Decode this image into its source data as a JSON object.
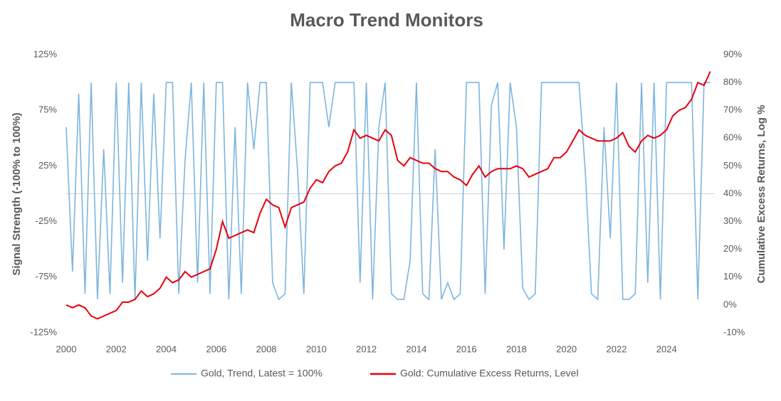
{
  "chart_data": {
    "type": "line",
    "title": "Macro Trend Monitors",
    "y_label": "Signal Strength (-100% to 100%)",
    "y2_label": "Cumulative Excess Returns, Log %",
    "x": [
      2000,
      2000.25,
      2000.5,
      2000.75,
      2001,
      2001.25,
      2001.5,
      2001.75,
      2002,
      2002.25,
      2002.5,
      2002.75,
      2003,
      2003.25,
      2003.5,
      2003.75,
      2004,
      2004.25,
      2004.5,
      2004.75,
      2005,
      2005.25,
      2005.5,
      2005.75,
      2006,
      2006.25,
      2006.5,
      2006.75,
      2007,
      2007.25,
      2007.5,
      2007.75,
      2008,
      2008.25,
      2008.5,
      2008.75,
      2009,
      2009.25,
      2009.5,
      2009.75,
      2010,
      2010.25,
      2010.5,
      2010.75,
      2011,
      2011.25,
      2011.5,
      2011.75,
      2012,
      2012.25,
      2012.5,
      2012.75,
      2013,
      2013.25,
      2013.5,
      2013.75,
      2014,
      2014.25,
      2014.5,
      2014.75,
      2015,
      2015.25,
      2015.5,
      2015.75,
      2016,
      2016.25,
      2016.5,
      2016.75,
      2017,
      2017.25,
      2017.5,
      2017.75,
      2018,
      2018.25,
      2018.5,
      2018.75,
      2019,
      2019.25,
      2019.5,
      2019.75,
      2020,
      2020.25,
      2020.5,
      2020.75,
      2021,
      2021.25,
      2021.5,
      2021.75,
      2022,
      2022.25,
      2022.5,
      2022.75,
      2023,
      2023.25,
      2023.5,
      2023.75,
      2024,
      2024.25,
      2024.5,
      2024.75,
      2025,
      2025.25,
      2025.5,
      2025.75
    ],
    "xlim": [
      2000,
      2025.9
    ],
    "xticks": [
      2000,
      2002,
      2004,
      2006,
      2008,
      2010,
      2012,
      2014,
      2016,
      2018,
      2020,
      2022,
      2024
    ],
    "ylim": [
      -125,
      125
    ],
    "yticks": [
      {
        "value": -125,
        "label": "-125%"
      },
      {
        "value": -75,
        "label": "-75%"
      },
      {
        "value": -25,
        "label": "-25%"
      },
      {
        "value": 25,
        "label": "25%"
      },
      {
        "value": 75,
        "label": "75%"
      },
      {
        "value": 125,
        "label": "125%"
      }
    ],
    "y2lim": [
      -10,
      90
    ],
    "y2ticks": [
      {
        "value": -10,
        "label": "-10%"
      },
      {
        "value": 0,
        "label": "0%"
      },
      {
        "value": 10,
        "label": "10%"
      },
      {
        "value": 20,
        "label": "20%"
      },
      {
        "value": 30,
        "label": "30%"
      },
      {
        "value": 40,
        "label": "40%"
      },
      {
        "value": 50,
        "label": "50%"
      },
      {
        "value": 60,
        "label": "60%"
      },
      {
        "value": 70,
        "label": "70%"
      },
      {
        "value": 80,
        "label": "80%"
      },
      {
        "value": 90,
        "label": "90%"
      }
    ],
    "legend": "bottom",
    "series": [
      {
        "name": "Gold, Trend, Latest = 100%",
        "color": "#7db5df",
        "axis": "y",
        "values": [
          60,
          -70,
          90,
          -90,
          100,
          -95,
          40,
          -90,
          100,
          -80,
          100,
          -95,
          100,
          -60,
          90,
          -40,
          100,
          100,
          -90,
          30,
          100,
          -80,
          100,
          -90,
          100,
          100,
          -95,
          60,
          -90,
          100,
          40,
          100,
          100,
          -80,
          -95,
          -90,
          100,
          20,
          -90,
          100,
          100,
          100,
          60,
          100,
          100,
          100,
          100,
          -80,
          100,
          -95,
          60,
          100,
          -90,
          -95,
          -95,
          -60,
          100,
          -90,
          -95,
          40,
          -95,
          -80,
          -95,
          -90,
          100,
          100,
          100,
          -90,
          80,
          100,
          -50,
          100,
          60,
          -85,
          -95,
          -90,
          100,
          100,
          100,
          100,
          100,
          100,
          100,
          20,
          -90,
          -95,
          60,
          -40,
          100,
          -95,
          -95,
          -90,
          100,
          -80,
          100,
          -95,
          100,
          100,
          100,
          100,
          100,
          -95,
          100,
          100
        ]
      },
      {
        "name": "Gold: Cumulative Excess Returns, Level",
        "color": "#e8000b",
        "axis": "y2",
        "values": [
          0,
          -1,
          0,
          -1,
          -4,
          -5,
          -4,
          -3,
          -2,
          1,
          1,
          2,
          5,
          3,
          4,
          6,
          10,
          8,
          9,
          12,
          10,
          11,
          12,
          13,
          20,
          30,
          24,
          25,
          26,
          27,
          26,
          33,
          38,
          36,
          35,
          28,
          35,
          36,
          37,
          42,
          45,
          44,
          48,
          50,
          51,
          55,
          63,
          60,
          61,
          60,
          59,
          63,
          61,
          52,
          50,
          53,
          52,
          51,
          51,
          49,
          48,
          48,
          46,
          45,
          43,
          47,
          50,
          46,
          48,
          49,
          49,
          49,
          50,
          49,
          46,
          47,
          48,
          49,
          53,
          53,
          55,
          59,
          63,
          61,
          60,
          59,
          59,
          59,
          60,
          62,
          57,
          55,
          59,
          61,
          60,
          61,
          63,
          68,
          70,
          71,
          74,
          80,
          79,
          84
        ]
      }
    ]
  }
}
